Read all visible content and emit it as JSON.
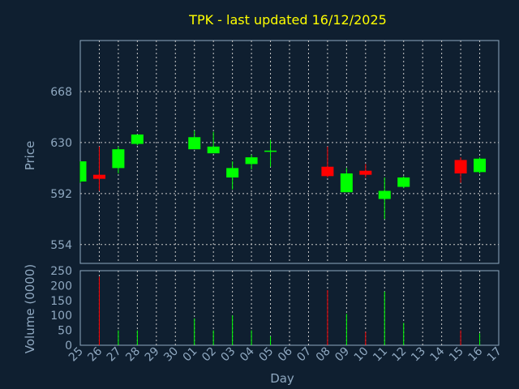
{
  "chart_data": [
    {
      "type": "candlestick",
      "title": "TPK - last updated 16/12/2025",
      "ylabel": "Price",
      "ylim": [
        540,
        706
      ],
      "yticks": [
        554,
        592,
        630,
        668
      ],
      "x_ticks": [
        "25",
        "26",
        "27",
        "28",
        "29",
        "30",
        "01",
        "02",
        "03",
        "04",
        "05",
        "06",
        "07",
        "08",
        "09",
        "10",
        "11",
        "12",
        "13",
        "14",
        "15",
        "16",
        "17"
      ],
      "colors": {
        "up": "#00ff00",
        "down": "#ff0000",
        "title": "#ffff00",
        "axis_text": "#8fa8c0",
        "background": "#0f1f30"
      },
      "candles": [
        {
          "day": "25",
          "open": 601,
          "high": 616,
          "low": 600,
          "close": 616
        },
        {
          "day": "26",
          "open": 606,
          "high": 627,
          "low": 594,
          "close": 603
        },
        {
          "day": "27",
          "open": 611,
          "high": 627,
          "low": 607,
          "close": 625
        },
        {
          "day": "28",
          "open": 629,
          "high": 636,
          "low": 628,
          "close": 636
        },
        {
          "day": "01",
          "open": 625,
          "high": 639,
          "low": 625,
          "close": 634
        },
        {
          "day": "02",
          "open": 622,
          "high": 638,
          "low": 622,
          "close": 627
        },
        {
          "day": "03",
          "open": 604,
          "high": 616,
          "low": 595,
          "close": 611
        },
        {
          "day": "04",
          "open": 614,
          "high": 621,
          "low": 610,
          "close": 619
        },
        {
          "day": "05",
          "open": 624,
          "high": 632,
          "low": 612,
          "close": 624
        },
        {
          "day": "08",
          "open": 612,
          "high": 627,
          "low": 604,
          "close": 605
        },
        {
          "day": "09",
          "open": 593,
          "high": 611,
          "low": 593,
          "close": 607
        },
        {
          "day": "10",
          "open": 609,
          "high": 614,
          "low": 604,
          "close": 606
        },
        {
          "day": "11",
          "open": 588,
          "high": 604,
          "low": 573,
          "close": 594
        },
        {
          "day": "12",
          "open": 597,
          "high": 605,
          "low": 596,
          "close": 604
        },
        {
          "day": "15",
          "open": 617,
          "high": 619,
          "low": 600,
          "close": 607
        },
        {
          "day": "16",
          "open": 608,
          "high": 619,
          "low": 607,
          "close": 618
        }
      ]
    },
    {
      "type": "bar",
      "ylabel": "Volume (0000)",
      "ylim": [
        0,
        250
      ],
      "yticks": [
        0,
        50,
        100,
        150,
        200,
        250
      ],
      "categories": [
        "25",
        "26",
        "27",
        "28",
        "01",
        "02",
        "03",
        "04",
        "05",
        "08",
        "09",
        "10",
        "11",
        "12",
        "15",
        "16"
      ],
      "values": [
        0,
        230,
        50,
        50,
        90,
        50,
        100,
        50,
        30,
        185,
        105,
        45,
        180,
        75,
        50,
        40
      ]
    }
  ]
}
